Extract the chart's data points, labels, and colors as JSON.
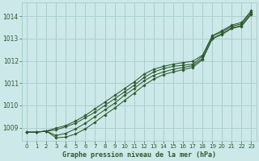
{
  "title": "Graphe pression niveau de la mer (hPa)",
  "bg_color": "#cce8e8",
  "grid_color": "#aacfcf",
  "line_color": "#2d5a2d",
  "xlim": [
    -0.5,
    23.5
  ],
  "ylim": [
    1008.4,
    1014.6
  ],
  "yticks": [
    1009,
    1010,
    1011,
    1012,
    1013,
    1014
  ],
  "xticks": [
    0,
    1,
    2,
    3,
    4,
    5,
    6,
    7,
    8,
    9,
    10,
    11,
    12,
    13,
    14,
    15,
    16,
    17,
    18,
    19,
    20,
    21,
    22,
    23
  ],
  "series": [
    [
      1008.8,
      1008.8,
      1008.85,
      1008.9,
      1009.05,
      1009.2,
      1009.45,
      1009.7,
      1010.0,
      1010.3,
      1010.6,
      1010.9,
      1011.25,
      1011.5,
      1011.65,
      1011.75,
      1011.8,
      1011.85,
      1012.2,
      1013.1,
      1013.3,
      1013.55,
      1013.65,
      1014.2
    ],
    [
      1008.8,
      1008.8,
      1008.85,
      1008.65,
      1008.75,
      1008.95,
      1009.2,
      1009.5,
      1009.8,
      1010.1,
      1010.45,
      1010.75,
      1011.1,
      1011.35,
      1011.5,
      1011.62,
      1011.7,
      1011.78,
      1012.1,
      1013.0,
      1013.22,
      1013.48,
      1013.58,
      1014.12
    ],
    [
      1008.8,
      1008.8,
      1008.85,
      1008.55,
      1008.58,
      1008.72,
      1008.95,
      1009.25,
      1009.58,
      1009.88,
      1010.22,
      1010.55,
      1010.9,
      1011.18,
      1011.38,
      1011.5,
      1011.6,
      1011.7,
      1012.05,
      1012.98,
      1013.18,
      1013.45,
      1013.55,
      1014.08
    ],
    [
      1008.8,
      1008.8,
      1008.85,
      1008.98,
      1009.1,
      1009.3,
      1009.55,
      1009.85,
      1010.15,
      1010.45,
      1010.75,
      1011.05,
      1011.4,
      1011.62,
      1011.75,
      1011.85,
      1011.92,
      1011.98,
      1012.25,
      1013.12,
      1013.35,
      1013.6,
      1013.72,
      1014.25
    ]
  ]
}
